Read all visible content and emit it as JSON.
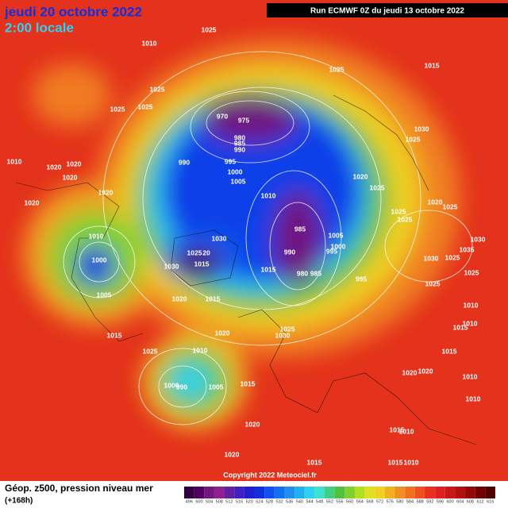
{
  "header": {
    "date": "jeudi 20 octobre 2022",
    "time": "2:00 locale",
    "run": "Run ECMWF 0Z du jeudi 13 octobre 2022"
  },
  "footer": {
    "title": "Géop. z500, pression niveau mer",
    "lead": "(+168h)",
    "copyright": "Copyright 2022 Meteociel.fr"
  },
  "isobars": [
    1025,
    1010,
    1025,
    1025,
    1025,
    1010,
    1020,
    1020,
    1020,
    1020,
    1020,
    1025,
    1015,
    970,
    975,
    980,
    985,
    990,
    990,
    995,
    1000,
    1005,
    1010,
    1020,
    1025,
    1030,
    1025,
    1020,
    1025,
    1025,
    1025,
    985,
    1005,
    1000,
    995,
    990,
    980,
    985,
    995,
    1015,
    1030,
    1025,
    20,
    1030,
    1015,
    1030,
    1025,
    1035,
    1030,
    1025,
    1025,
    1010,
    1000,
    1005,
    1020,
    1015,
    1020,
    1025,
    1030,
    1015,
    1025,
    1010,
    1000,
    990,
    1005,
    1015,
    1010,
    1010,
    1015,
    1015,
    1020,
    1020,
    1010,
    1010,
    1020,
    1015,
    1010,
    1020,
    1015,
    1015,
    1010
  ],
  "colorbar": {
    "levels": [
      {
        "value": 496,
        "color": "#300040"
      },
      {
        "value": 500,
        "color": "#500060"
      },
      {
        "value": 504,
        "color": "#701880"
      },
      {
        "value": 508,
        "color": "#902090"
      },
      {
        "value": 512,
        "color": "#6020a0"
      },
      {
        "value": 516,
        "color": "#4020c0"
      },
      {
        "value": 520,
        "color": "#2020d0"
      },
      {
        "value": 524,
        "color": "#1030e0"
      },
      {
        "value": 528,
        "color": "#1050f0"
      },
      {
        "value": 532,
        "color": "#1070f0"
      },
      {
        "value": 536,
        "color": "#2090f0"
      },
      {
        "value": 540,
        "color": "#20b0f0"
      },
      {
        "value": 544,
        "color": "#30d0f0"
      },
      {
        "value": 548,
        "color": "#40e0d0"
      },
      {
        "value": 552,
        "color": "#40d080"
      },
      {
        "value": 556,
        "color": "#50c040"
      },
      {
        "value": 560,
        "color": "#80d030"
      },
      {
        "value": 564,
        "color": "#b0e020"
      },
      {
        "value": 568,
        "color": "#e0e020"
      },
      {
        "value": 572,
        "color": "#f0d020"
      },
      {
        "value": 576,
        "color": "#f0b020"
      },
      {
        "value": 580,
        "color": "#f09020"
      },
      {
        "value": 584,
        "color": "#f07020"
      },
      {
        "value": 588,
        "color": "#f05020"
      },
      {
        "value": 592,
        "color": "#e83020"
      },
      {
        "value": 596,
        "color": "#e02020"
      },
      {
        "value": 600,
        "color": "#c81818"
      },
      {
        "value": 604,
        "color": "#b01010"
      },
      {
        "value": 608,
        "color": "#900808"
      },
      {
        "value": 612,
        "color": "#700000"
      },
      {
        "value": 616,
        "color": "#500000"
      }
    ]
  }
}
